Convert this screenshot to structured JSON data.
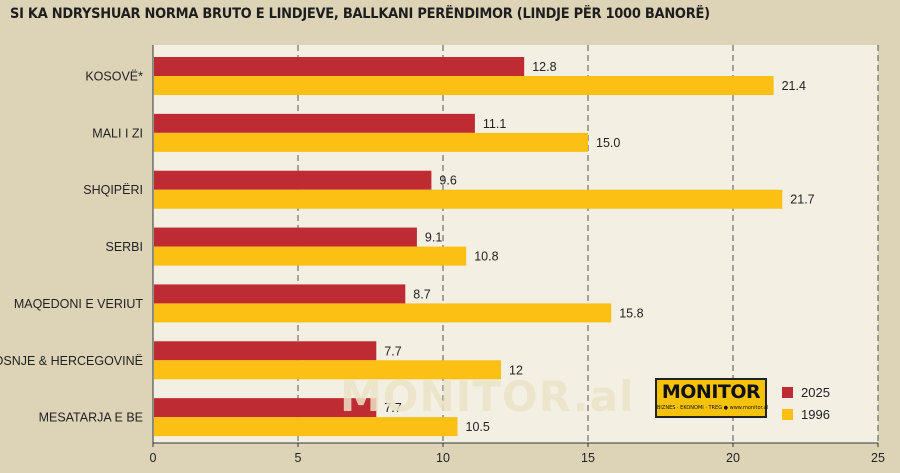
{
  "title": "SI KA NDRYSHUAR NORMA BRUTO E LINDJEVE, BALLKANI PERËNDIMOR (LINDJE PËR 1000 BANORË)",
  "watermark": "MONITOR.al",
  "logo": {
    "main": "MONITOR",
    "sub": "BIZNES · EKONOMI · TREG  ● www.monitor.al"
  },
  "colors": {
    "background": "#ddd4b8",
    "plot_area": "#f3efe3",
    "series_2025": "#be2b33",
    "series_1996": "#fcbf13"
  },
  "chart_data": {
    "type": "bar",
    "orientation": "horizontal",
    "title": "SI KA NDRYSHUAR NORMA BRUTO E LINDJEVE, BALLKANI PERËNDIMOR (LINDJE PËR 1000 BANORË)",
    "categories": [
      "KOSOVË*",
      "MALI I ZI",
      "SHQIPËRI",
      "SERBI",
      "MAQEDONI E VERIUT",
      "BOSNJE & HERCEGOVINË",
      "MESATARJA E BE"
    ],
    "series": [
      {
        "name": "2025",
        "values": [
          12.8,
          11.1,
          9.6,
          9.1,
          8.7,
          7.7,
          7.7
        ],
        "labels": [
          "12.8",
          "11.1",
          "9.6",
          "9.1",
          "8.7",
          "7.7",
          "7.7"
        ],
        "color": "#be2b33"
      },
      {
        "name": "1996",
        "values": [
          21.4,
          15.0,
          21.7,
          10.8,
          15.8,
          12,
          10.5
        ],
        "labels": [
          "21.4",
          "15.0",
          "21.7",
          "10.8",
          "15.8",
          "12",
          "10.5"
        ],
        "color": "#fcbf13"
      }
    ],
    "xlim": [
      0,
      25
    ],
    "xticks": [
      0,
      5,
      10,
      15,
      20,
      25
    ],
    "grid": true,
    "legend": "bottom-right"
  }
}
